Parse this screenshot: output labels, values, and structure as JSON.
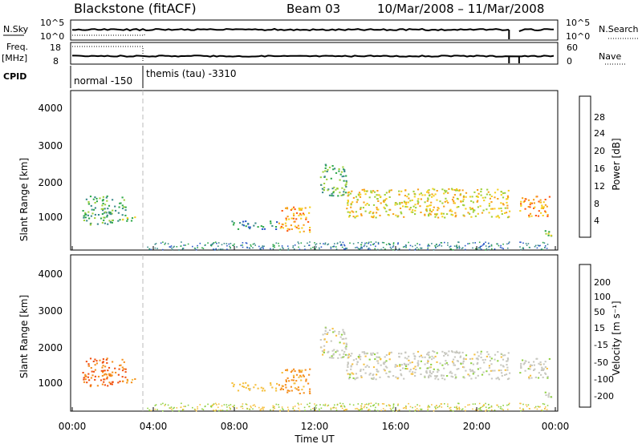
{
  "header": {
    "station": "Blackstone (fitACF)",
    "beam": "Beam 03",
    "dates": "10/Mar/2008 – 11/Mar/2008"
  },
  "summary": {
    "nsky_label": "N.Sky",
    "nsky_ticks": [
      "10^5",
      "10^0"
    ],
    "nsearch_label": "N.Search",
    "nsearch_ticks": [
      "10^5",
      "10^0"
    ],
    "freq_label": [
      "Freq.",
      "[MHz]"
    ],
    "freq_ticks": [
      "18",
      "8"
    ],
    "nave_label": "Nave",
    "nave_ticks": [
      "60",
      "0"
    ],
    "cpid_label": "CPID",
    "cpid_segments": [
      {
        "name": "normal -150",
        "start_hour": 0,
        "end_hour": 3.6
      },
      {
        "name": "themis (tau) -3310",
        "start_hour": 3.6,
        "end_hour": 24
      }
    ]
  },
  "power_panel": {
    "ylabel": "Slant Range [km]",
    "yticks": [
      "4000",
      "3000",
      "2000",
      "1000"
    ],
    "colorbar_label": "Power [dB]",
    "colorbar_ticks": [
      "28",
      "24",
      "20",
      "16",
      "12",
      "8",
      "4"
    ],
    "colors": [
      "#0000ff",
      "#2a58c8",
      "#3a8a8a",
      "#2ea84a",
      "#9fd03a",
      "#f5d020",
      "#f7a01a",
      "#ff5a10",
      "#f00000"
    ]
  },
  "velocity_panel": {
    "ylabel": "Slant Range [km]",
    "yticks": [
      "4000",
      "3000",
      "2000",
      "1000"
    ],
    "colorbar_label": "Velocity [m s⁻¹]",
    "colorbar_ticks": [
      "200",
      "100",
      "50",
      "15",
      "-15",
      "-50",
      "-100",
      "-200"
    ],
    "colors": [
      "#1a3fbf",
      "#2e7fbf",
      "#3fa84a",
      "#8fd040",
      "#c8c8c0",
      "#f5c040",
      "#f59020",
      "#f05010",
      "#e00000"
    ]
  },
  "xaxis": {
    "label": "Time UT",
    "ticks": [
      "00:00",
      "04:00",
      "08:00",
      "12:00",
      "16:00",
      "20:00",
      "00:00"
    ]
  },
  "chart_data": {
    "type": "heatmap",
    "title": "Blackstone (fitACF)   Beam 03   10/Mar/2008 – 11/Mar/2008",
    "xlabel": "Time UT",
    "ylabel": "Slant Range [km]",
    "xlim_hours": [
      0,
      24
    ],
    "ylim_km": [
      180,
      4600
    ],
    "cpid_change_hour": 3.6,
    "data_gap_hours": [
      21.7,
      22.2
    ],
    "scatter_regions": [
      {
        "t_start": 0.5,
        "t_end": 2.7,
        "r_min": 900,
        "r_max": 1700,
        "power_db": 12,
        "velocity": -100
      },
      {
        "t_start": 2.4,
        "t_end": 3.1,
        "r_min": 950,
        "r_max": 1150,
        "power_db": 16,
        "velocity": -50
      },
      {
        "t_start": 7.9,
        "t_end": 10.2,
        "r_min": 780,
        "r_max": 1000,
        "power_db": 8,
        "velocity": -30
      },
      {
        "t_start": 10.2,
        "t_end": 11.8,
        "r_min": 700,
        "r_max": 1400,
        "power_db": 24,
        "velocity": -60
      },
      {
        "t_start": 12.3,
        "t_end": 13.6,
        "r_min": 1700,
        "r_max": 2600,
        "power_db": 12,
        "velocity": 0
      },
      {
        "t_start": 13.6,
        "t_end": 21.7,
        "r_min": 1100,
        "r_max": 1900,
        "power_db": 20,
        "velocity": 0
      },
      {
        "t_start": 22.2,
        "t_end": 23.7,
        "r_min": 1100,
        "r_max": 1700,
        "power_db": 24,
        "velocity": 0
      },
      {
        "t_start": 23.3,
        "t_end": 23.9,
        "r_min": 550,
        "r_max": 750,
        "power_db": 16,
        "velocity": 0
      }
    ]
  }
}
